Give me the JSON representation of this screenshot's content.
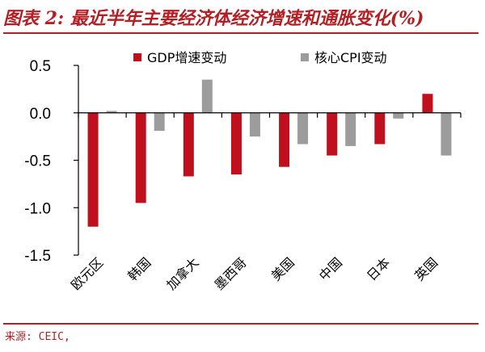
{
  "header": {
    "title": "图表 2: 最近半年主要经济体经济增速和通胀变化(%)"
  },
  "footer": {
    "source": "来源: CEIC,"
  },
  "chart_data": {
    "type": "bar",
    "title": "图表 2: 最近半年主要经济体经济增速和通胀变化(%)",
    "categories": [
      "欧元区",
      "韩国",
      "加拿大",
      "墨西哥",
      "美国",
      "中国",
      "日本",
      "英国"
    ],
    "series": [
      {
        "name": "GDP增速变动",
        "color": "#c0101d",
        "values": [
          -1.2,
          -0.95,
          -0.67,
          -0.65,
          -0.57,
          -0.45,
          -0.33,
          0.2
        ]
      },
      {
        "name": "核心CPI变动",
        "color": "#9c9c9c",
        "values": [
          0.02,
          -0.19,
          0.35,
          -0.25,
          -0.33,
          -0.35,
          -0.06,
          -0.45
        ]
      }
    ],
    "ylim": [
      -1.5,
      0.5
    ],
    "yticks": [
      0.5,
      0.0,
      -0.5,
      -1.0,
      -1.5
    ],
    "ytick_labels": [
      "0.5",
      "0.0",
      "-0.5",
      "-1.0",
      "-1.5"
    ],
    "xlabel": "",
    "ylabel": "",
    "legend_position": "top",
    "grid": false
  }
}
